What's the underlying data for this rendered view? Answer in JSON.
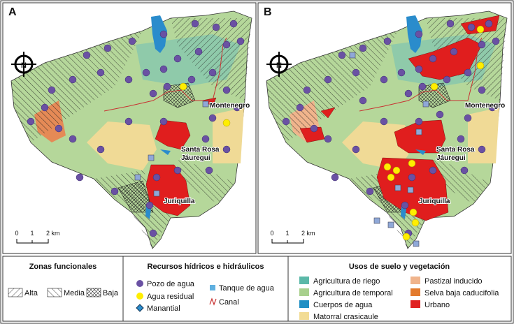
{
  "panels": [
    {
      "label": "A",
      "north": "N",
      "places": [
        "Montenegro",
        "Santa Rosa",
        "Jáuregui",
        "Juriquilla"
      ],
      "scale": [
        "0",
        "1",
        "2 km"
      ]
    },
    {
      "label": "B",
      "north": "N",
      "places": [
        "Montenegro",
        "Santa Rosa",
        "Jáuregui",
        "Juriquilla"
      ],
      "scale": [
        "0",
        "1",
        "2 km"
      ]
    }
  ],
  "legend": {
    "zonas": {
      "title": "Zonas funcionales",
      "items": [
        "Alta",
        "Media",
        "Baja"
      ]
    },
    "recursos": {
      "title": "Recursos hídricos e hidráulicos",
      "items": [
        "Pozo de agua",
        "Agua residual",
        "Manantial",
        "Tanque de agua",
        "Canal"
      ]
    },
    "usos": {
      "title": "Usos de suelo y vegetación",
      "items": [
        "Agricultura de riego",
        "Agricultura de temporal",
        "Cuerpos de agua",
        "Matorral crasicaule",
        "Pastizal inducido",
        "Selva baja caducifolia",
        "Urbano"
      ]
    }
  }
}
